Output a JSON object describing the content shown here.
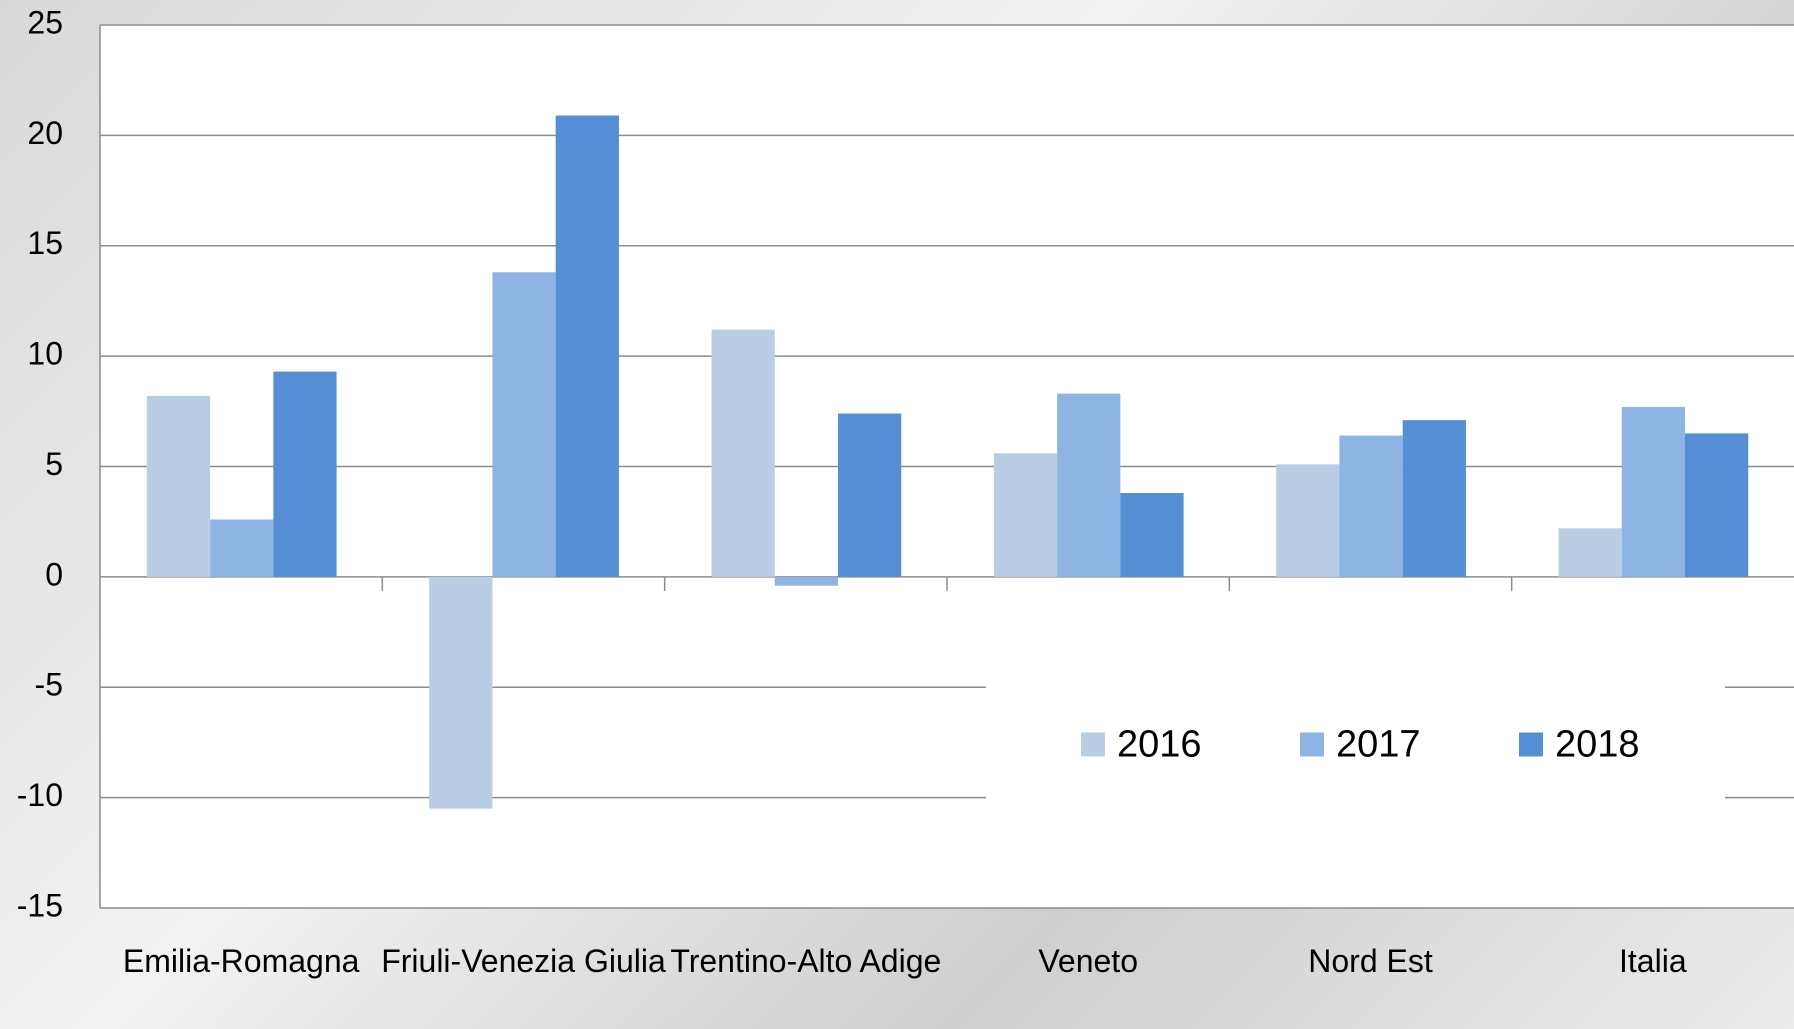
{
  "chart_data": {
    "type": "bar",
    "categories": [
      "Emilia-Romagna",
      "Friuli-Venezia Giulia",
      "Trentino-Alto Adige",
      "Veneto",
      "Nord Est",
      "Italia"
    ],
    "series": [
      {
        "name": "2016",
        "color": "#b9cde5",
        "values": [
          8.2,
          -10.5,
          11.2,
          5.6,
          5.1,
          2.2
        ]
      },
      {
        "name": "2017",
        "color": "#8eb4e3",
        "values": [
          2.6,
          13.8,
          -0.4,
          8.3,
          6.4,
          7.7
        ]
      },
      {
        "name": "2018",
        "color": "#558ed5",
        "values": [
          9.3,
          20.9,
          7.4,
          3.8,
          7.1,
          6.5
        ]
      }
    ],
    "ylim": [
      -15,
      25
    ],
    "yticks": [
      -15,
      -10,
      -5,
      0,
      5,
      10,
      15,
      20,
      25
    ],
    "grid": true,
    "legend": "lower right"
  }
}
